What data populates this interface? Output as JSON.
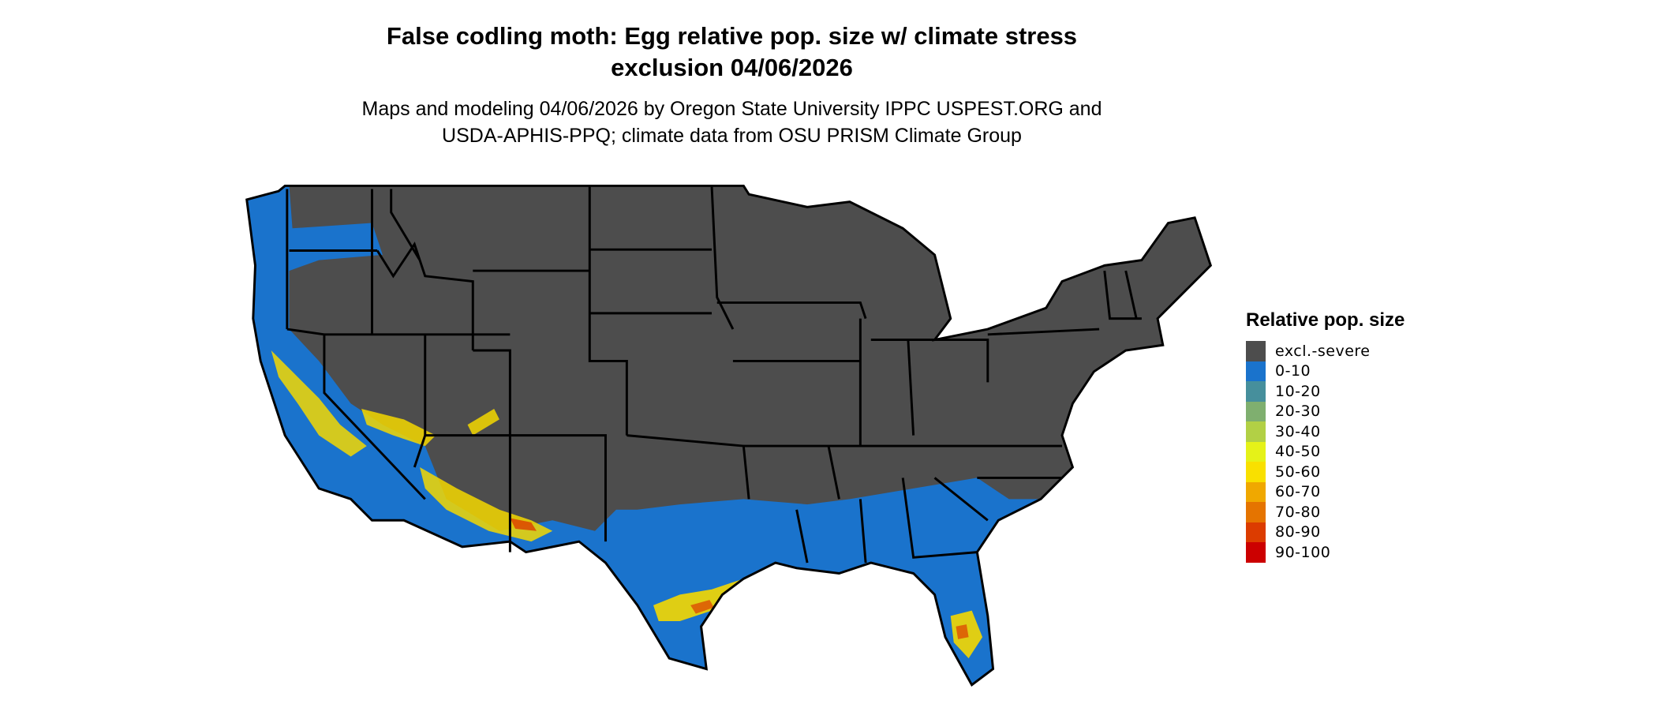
{
  "title": {
    "line1": "False codling moth: Egg relative pop. size w/ climate stress",
    "line2": "exclusion 04/06/2026"
  },
  "subtitle": {
    "line1": "Maps and modeling 04/06/2026 by Oregon State University IPPC USPEST.ORG and",
    "line2": "USDA-APHIS-PPQ; climate data from OSU PRISM Climate Group"
  },
  "map": {
    "region": "Contiguous United States",
    "colors": {
      "excluded": "#4d4d4d",
      "low": "#1a73cc",
      "hotspot": "#f9e000",
      "high": "#d92d00",
      "border": "#000000"
    }
  },
  "legend": {
    "title": "Relative pop. size",
    "items": [
      {
        "label": "excl.-severe",
        "color": "#4d4d4d"
      },
      {
        "label": "0-10",
        "color": "#1a73cc"
      },
      {
        "label": "10-20",
        "color": "#468f9c"
      },
      {
        "label": "20-30",
        "color": "#7faf6f"
      },
      {
        "label": "30-40",
        "color": "#b2d045"
      },
      {
        "label": "40-50",
        "color": "#e5f218"
      },
      {
        "label": "50-60",
        "color": "#f9e000"
      },
      {
        "label": "60-70",
        "color": "#f0a800"
      },
      {
        "label": "70-80",
        "color": "#e57400"
      },
      {
        "label": "80-90",
        "color": "#dc3c00"
      },
      {
        "label": "90-100",
        "color": "#cc0000"
      }
    ]
  }
}
